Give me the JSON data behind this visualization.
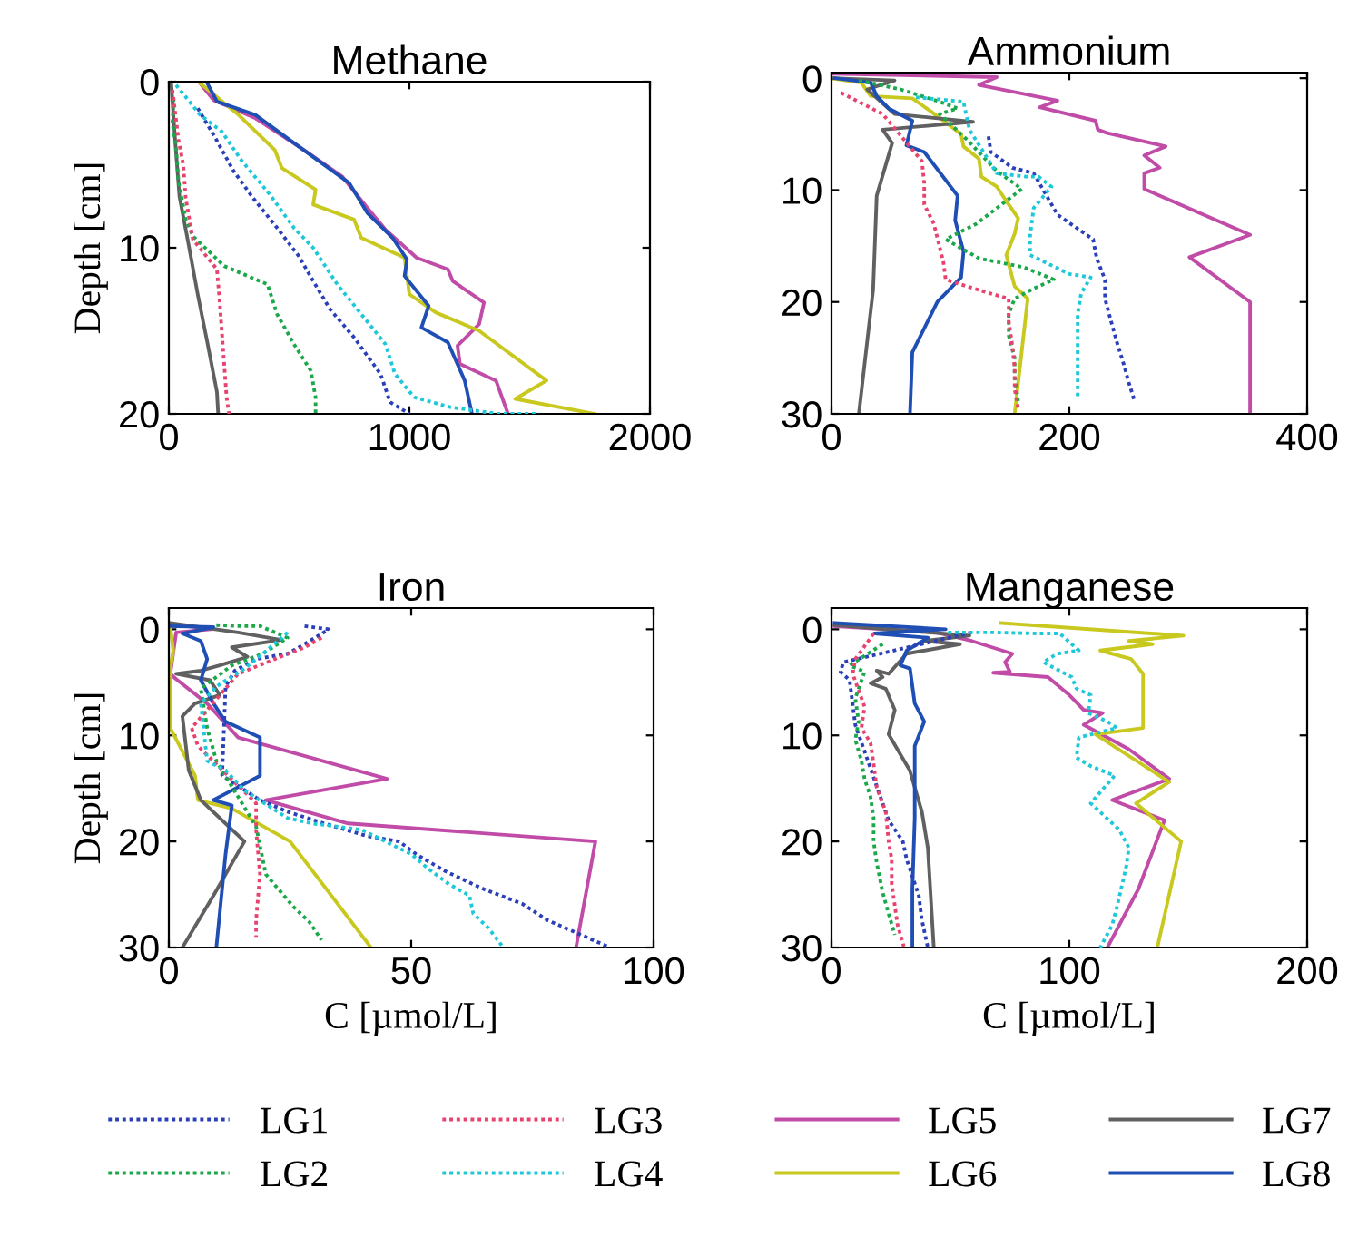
{
  "chart_data": [
    {
      "type": "line",
      "title": "Methane",
      "ylabel": "Depth [cm]",
      "xlim": [
        0,
        2000
      ],
      "xticks": [
        0,
        1000,
        2000
      ],
      "ylim": [
        20,
        0
      ],
      "yticks": [
        0,
        10,
        20
      ],
      "legend": "bottom",
      "grid": false,
      "series": [
        {
          "name": "LG1",
          "color": "#2a3fb8",
          "line_style": "dotted",
          "x": [
            120,
            190,
            270,
            350,
            450,
            540,
            600,
            670,
            770,
            880,
            920,
            1000
          ],
          "values": [
            1.6,
            3.3,
            5.4,
            7,
            8.8,
            10.5,
            12,
            13.7,
            15.4,
            17.6,
            19.3,
            20
          ]
        },
        {
          "name": "LG2",
          "color": "#1aa84a",
          "line_style": "dotted",
          "x": [
            20,
            15,
            30,
            40,
            70,
            100,
            230,
            410,
            450,
            520,
            590,
            610,
            610
          ],
          "values": [
            1,
            2.5,
            4,
            6,
            8.3,
            9.3,
            11.1,
            12.2,
            14,
            15.8,
            17.4,
            19,
            20
          ]
        },
        {
          "name": "LG3",
          "color": "#e8436e",
          "line_style": "dotted",
          "x": [
            15,
            40,
            60,
            70,
            100,
            200,
            210,
            220,
            230,
            240,
            250
          ],
          "values": [
            0.5,
            3.5,
            5,
            7,
            9.5,
            11.3,
            13,
            15,
            17,
            19,
            20
          ]
        },
        {
          "name": "LG4",
          "color": "#1ec8d8",
          "line_style": "dotted",
          "x": [
            30,
            130,
            220,
            300,
            420,
            520,
            600,
            700,
            800,
            900,
            940,
            1020,
            1170,
            1370,
            1540
          ],
          "values": [
            0.2,
            2,
            3,
            4.7,
            6.8,
            8.8,
            10,
            12.2,
            14,
            15.8,
            17.6,
            19,
            19.6,
            20,
            20
          ]
        },
        {
          "name": "LG5",
          "color": "#c04ca8",
          "line_style": "solid",
          "x": [
            130,
            185,
            360,
            540,
            720,
            825,
            900,
            1030,
            1160,
            1180,
            1310,
            1290,
            1200,
            1210,
            1360,
            1410
          ],
          "values": [
            0.1,
            1.1,
            2.2,
            3.9,
            5.7,
            7.6,
            8.9,
            10.6,
            11.3,
            12,
            13.3,
            14.6,
            15.9,
            17,
            18,
            20
          ]
        },
        {
          "name": "LG6",
          "color": "#c8c81e",
          "line_style": "solid",
          "x": [
            130,
            290,
            440,
            470,
            610,
            600,
            770,
            800,
            980,
            1000,
            1110,
            1290,
            1570,
            1440,
            1770
          ],
          "values": [
            0.1,
            2,
            4.1,
            5.2,
            6.5,
            7.4,
            8.3,
            9.4,
            10.6,
            12.8,
            13.9,
            15,
            18,
            19.1,
            20
          ]
        },
        {
          "name": "LG7",
          "color": "#606060",
          "line_style": "solid",
          "x": [
            10,
            26,
            44,
            82,
            120,
            160,
            200,
            205
          ],
          "values": [
            0.1,
            3.5,
            6.9,
            9.8,
            12.8,
            15.7,
            18.7,
            20
          ]
        },
        {
          "name": "LG8",
          "color": "#1f4fb4",
          "line_style": "solid",
          "x": [
            160,
            200,
            360,
            540,
            750,
            825,
            930,
            990,
            980,
            1080,
            1050,
            1160,
            1230,
            1260
          ],
          "values": [
            0.1,
            1.2,
            2,
            3.9,
            6.1,
            7.9,
            9.4,
            10.7,
            11.7,
            13.5,
            14.8,
            15.7,
            18,
            20
          ]
        }
      ]
    },
    {
      "type": "line",
      "title": "Ammonium",
      "xlim": [
        0,
        400
      ],
      "xticks": [
        0,
        200,
        400
      ],
      "ylim": [
        30,
        -0.5
      ],
      "yticks": [
        0,
        10,
        20,
        30
      ],
      "grid": false,
      "series": [
        {
          "color": "#2a3fb8",
          "line_style": "dotted",
          "x": [
            132,
            134,
            152,
            170,
            190,
            205,
            220,
            223,
            230,
            230,
            235,
            240,
            245,
            250,
            255
          ],
          "values": [
            5.2,
            6.6,
            8,
            8.5,
            12.2,
            13.3,
            14.4,
            16.1,
            18,
            19.7,
            21.7,
            23.6,
            25.3,
            27.2,
            28.9
          ]
        },
        {
          "color": "#1aa84a",
          "line_style": "dotted",
          "x": [
            23,
            58,
            91,
            106,
            91,
            114,
            139,
            160,
            122,
            96,
            124,
            162,
            187,
            170,
            154,
            149,
            149,
            154,
            154,
            157
          ],
          "values": [
            0.2,
            1,
            2.1,
            2.7,
            3.2,
            5.5,
            8.3,
            9.9,
            13,
            14.4,
            16.1,
            16.9,
            18,
            18.8,
            19.7,
            21.1,
            23,
            25,
            26.7,
            28.9
          ]
        },
        {
          "color": "#e8436e",
          "line_style": "dotted",
          "x": [
            8,
            43,
            76,
            78,
            78,
            86,
            94,
            96,
            114,
            132,
            149,
            149,
            152,
            154,
            154,
            157
          ],
          "values": [
            1.3,
            3.2,
            7.4,
            9.4,
            11.3,
            13,
            16.4,
            18,
            18.6,
            19.2,
            19.7,
            21.7,
            23.9,
            25.9,
            27.8,
            29.5
          ]
        },
        {
          "color": "#1ec8d8",
          "line_style": "dotted",
          "x": [
            71,
            111,
            116,
            126,
            139,
            164,
            174,
            185,
            170,
            167,
            167,
            200,
            218,
            210,
            207,
            207,
            207,
            207,
            207
          ],
          "values": [
            1.7,
            2.1,
            4.6,
            6.3,
            8.5,
            8.8,
            8.8,
            9.7,
            11.6,
            14.1,
            15.8,
            17.5,
            17.8,
            19.2,
            21.1,
            23.1,
            24.7,
            26.7,
            28.7
          ]
        },
        {
          "color": "#c04ca8",
          "line_style": "solid",
          "x": [
            0,
            139,
            124,
            190,
            175,
            222,
            224,
            232,
            281,
            263,
            276,
            263,
            263,
            352,
            301,
            352,
            352
          ],
          "values": [
            -0.4,
            -0.1,
            0.6,
            2,
            2.6,
            3.8,
            4.6,
            4.9,
            6.1,
            6.9,
            8,
            8.5,
            9.9,
            14,
            16,
            20,
            30
          ]
        },
        {
          "color": "#c8c81e",
          "line_style": "solid",
          "x": [
            0,
            25,
            33,
            68,
            84,
            94,
            109,
            111,
            124,
            126,
            139,
            149,
            157,
            154,
            147,
            154,
            165,
            154
          ],
          "values": [
            0,
            0.4,
            1.6,
            1.8,
            3,
            3.8,
            5,
            6.1,
            7.2,
            8.8,
            9.7,
            11.3,
            12.5,
            13.9,
            15.8,
            18.6,
            19.7,
            30
          ]
        },
        {
          "color": "#606060",
          "line_style": "solid",
          "x": [
            0,
            53,
            30,
            53,
            119,
            43,
            51,
            38,
            35,
            23
          ],
          "values": [
            0,
            0.2,
            1,
            3.2,
            3.9,
            4.6,
            5.8,
            10.5,
            18.9,
            30
          ]
        },
        {
          "color": "#1f4fb4",
          "line_style": "solid",
          "x": [
            3,
            33,
            38,
            48,
            68,
            63,
            78,
            106,
            104,
            111,
            109,
            89,
            68,
            66
          ],
          "values": [
            0,
            0.4,
            1.6,
            2.7,
            3.8,
            6,
            6.6,
            10.5,
            12.7,
            15.5,
            17.8,
            20,
            24.5,
            30
          ]
        }
      ]
    },
    {
      "type": "line",
      "title": "Iron",
      "ylabel": "Depth [cm]",
      "xlabel": "C [µmol/L]",
      "xlim": [
        0,
        100
      ],
      "xticks": [
        0,
        50,
        100
      ],
      "ylim": [
        30,
        -2
      ],
      "yticks": [
        0,
        10,
        20,
        30
      ],
      "grid": false,
      "series": [
        {
          "color": "#2a3fb8",
          "line_style": "dotted",
          "x": [
            28,
            33,
            28,
            24.5,
            18,
            13.6,
            11.7,
            11,
            18.8,
            24.5,
            32,
            41,
            47.5,
            51,
            57,
            65,
            73,
            78,
            86,
            91
          ],
          "values": [
            -0.3,
            0,
            1.4,
            2.3,
            2.8,
            3.9,
            5.4,
            13.8,
            16.1,
            17.2,
            18.3,
            19.5,
            20,
            21.2,
            22.8,
            24.5,
            25.9,
            27.4,
            29,
            30
          ]
        },
        {
          "color": "#1aa84a",
          "line_style": "dotted",
          "x": [
            9.8,
            14.3,
            18.8,
            24.5,
            19.4,
            13,
            6.6,
            7.9,
            9.8,
            18,
            20,
            22.6,
            25.8,
            29,
            31.5
          ],
          "values": [
            -0.4,
            -0.3,
            -0.3,
            0.8,
            2.3,
            3.4,
            5.6,
            9.3,
            12.4,
            18.6,
            23.1,
            24.5,
            26.2,
            27.6,
            29.3
          ]
        },
        {
          "color": "#e8436e",
          "line_style": "dotted",
          "x": [
            31.5,
            28,
            21.9,
            14.3,
            4.7,
            6,
            18,
            18,
            18.8,
            18,
            18
          ],
          "values": [
            0.8,
            1.7,
            2.8,
            4.2,
            9.3,
            11,
            16.4,
            18.9,
            23.1,
            27.4,
            29
          ]
        },
        {
          "color": "#1ec8d8",
          "line_style": "dotted",
          "x": [
            24.5,
            19.4,
            15.6,
            9.8,
            6.6,
            7.9,
            11.7,
            15.6,
            24.5,
            29.6,
            39.8,
            50,
            53.6,
            57.7,
            62,
            62.8,
            66,
            69
          ],
          "values": [
            0.3,
            2.3,
            3.7,
            5.4,
            7,
            12.4,
            13.3,
            15.2,
            17.8,
            18.3,
            18.9,
            21.2,
            22.6,
            24,
            25.1,
            26.8,
            28.2,
            30
          ]
        },
        {
          "color": "#c04ca8",
          "line_style": "solid",
          "x": [
            4,
            8.6,
            1.5,
            0.3,
            1.5,
            7.9,
            14.3,
            45,
            20,
            37,
            88,
            84
          ],
          "values": [
            -0.3,
            0,
            0.3,
            4.2,
            4.7,
            7,
            10.2,
            14.1,
            16.1,
            18.3,
            20,
            30
          ]
        },
        {
          "color": "#c8c81e",
          "line_style": "solid",
          "x": [
            0.3,
            0.9,
            0.3,
            0.3,
            5.4,
            6,
            13,
            25,
            41.7
          ],
          "values": [
            -0.3,
            2,
            3.7,
            9.3,
            13.8,
            16.1,
            16.9,
            20,
            30
          ]
        },
        {
          "color": "#606060",
          "line_style": "solid",
          "x": [
            0.3,
            14.3,
            23.2,
            13,
            16.2,
            10.5,
            6.6,
            1.5,
            8.5,
            10.5,
            5.4,
            2.8,
            4.1,
            6.6,
            15.6,
            9.2,
            2.8
          ],
          "values": [
            -0.6,
            0.3,
            1,
            1.7,
            2.6,
            3.4,
            3.9,
            4.2,
            4.8,
            6.2,
            7,
            8.2,
            13.3,
            16.1,
            20,
            25.1,
            30
          ]
        },
        {
          "color": "#1f4fb4",
          "line_style": "solid",
          "x": [
            0.3,
            9.2,
            2.8,
            6.6,
            7.9,
            6.6,
            9.2,
            11.7,
            18.8,
            18.8,
            9.2,
            13,
            11.7,
            9.8
          ],
          "values": [
            -0.3,
            -0.2,
            0.4,
            1.1,
            2.8,
            4.8,
            7,
            8.7,
            10.2,
            13.8,
            16.1,
            16.6,
            21.2,
            30
          ]
        }
      ]
    },
    {
      "type": "line",
      "title": "Manganese",
      "xlabel": "C [µmol/L]",
      "xlim": [
        0,
        200
      ],
      "xticks": [
        0,
        100,
        200
      ],
      "ylim": [
        30,
        -2
      ],
      "yticks": [
        0,
        10,
        20,
        30
      ],
      "grid": false,
      "series": [
        {
          "color": "#2a3fb8",
          "line_style": "dotted",
          "x": [
            59,
            5,
            3.8,
            7.6,
            10,
            24,
            30,
            31.6,
            36.7,
            38,
            40.5
          ],
          "values": [
            0.3,
            3.1,
            4,
            4.8,
            9,
            18,
            20,
            21.7,
            25.1,
            27.4,
            30
          ]
        },
        {
          "color": "#1aa84a",
          "line_style": "dotted",
          "x": [
            21.5,
            13.9,
            7.6,
            13.9,
            10,
            11.4,
            10,
            12.6,
            13.9,
            16.4,
            17.7,
            17.7,
            19,
            21.5,
            24,
            26.6
          ],
          "values": [
            1.4,
            2.5,
            3.4,
            4,
            6.5,
            8.7,
            10.4,
            12.4,
            14.1,
            15.8,
            17.8,
            20,
            22,
            24.8,
            26.8,
            28.8
          ]
        },
        {
          "color": "#e8436e",
          "line_style": "dotted",
          "x": [
            17.7,
            12.6,
            10,
            8.9,
            13.9,
            12.6,
            16.4,
            17.7,
            19,
            22.8,
            24,
            25.3,
            25.3,
            27.8,
            30.4
          ],
          "values": [
            0.4,
            2,
            2.8,
            4.2,
            7.3,
            9.3,
            10.7,
            12.7,
            14.9,
            17.2,
            20,
            21.7,
            24,
            27.9,
            29.9
          ]
        },
        {
          "color": "#1ec8d8",
          "line_style": "dotted",
          "x": [
            49,
            68,
            87,
            96,
            104,
            95,
            89,
            101,
            103,
            109,
            108,
            116,
            120,
            104,
            103,
            109,
            119,
            109,
            121,
            125,
            124,
            120,
            118,
            113
          ],
          "values": [
            0.3,
            0.3,
            0.4,
            0.4,
            2,
            2.3,
            3.1,
            4.5,
            5.6,
            6.2,
            7.9,
            8.7,
            9.3,
            10.2,
            12.1,
            12.9,
            13.8,
            16.4,
            18.9,
            20.6,
            22.3,
            26.2,
            27.9,
            30
          ]
        },
        {
          "color": "#c04ca8",
          "line_style": "solid",
          "x": [
            1.3,
            44,
            59,
            76,
            73,
            75,
            68,
            91,
            100,
            106,
            114,
            106,
            125,
            142,
            118,
            140,
            129,
            116
          ],
          "values": [
            -0.3,
            0.3,
            1.1,
            2.3,
            3.1,
            4,
            4.1,
            4.5,
            6.2,
            7.6,
            7.9,
            9,
            11.3,
            14.1,
            16.1,
            18,
            24.5,
            30
          ]
        },
        {
          "color": "#c8c81e",
          "line_style": "solid",
          "x": [
            71,
            148,
            125,
            135,
            113,
            126,
            131,
            131,
            131,
            111,
            142,
            128,
            147,
            137
          ],
          "values": [
            -0.6,
            0.6,
            1.1,
            1.4,
            2,
            2.8,
            4.2,
            5.4,
            9.3,
            9.9,
            14.4,
            16.4,
            20,
            30
          ]
        },
        {
          "color": "#606060",
          "line_style": "solid",
          "x": [
            1.3,
            58,
            39,
            54,
            31.6,
            24,
            19,
            21.5,
            16.5,
            22.8,
            26.6,
            24,
            32.9,
            38,
            40.5,
            43
          ],
          "values": [
            -0.4,
            0.6,
            1.1,
            1.4,
            2.3,
            4.2,
            3.9,
            4.5,
            5.1,
            5.6,
            7.6,
            9.9,
            13.3,
            17.2,
            20.6,
            30
          ]
        },
        {
          "color": "#1f4fb4",
          "line_style": "solid",
          "x": [
            1.3,
            48,
            18,
            40.5,
            31.6,
            29,
            33,
            35,
            39,
            35,
            35,
            34,
            34
          ],
          "values": [
            -0.6,
            0,
            0.4,
            0.8,
            2,
            3.4,
            3.7,
            7,
            8.7,
            11,
            17.8,
            24.5,
            30
          ]
        }
      ]
    }
  ]
}
